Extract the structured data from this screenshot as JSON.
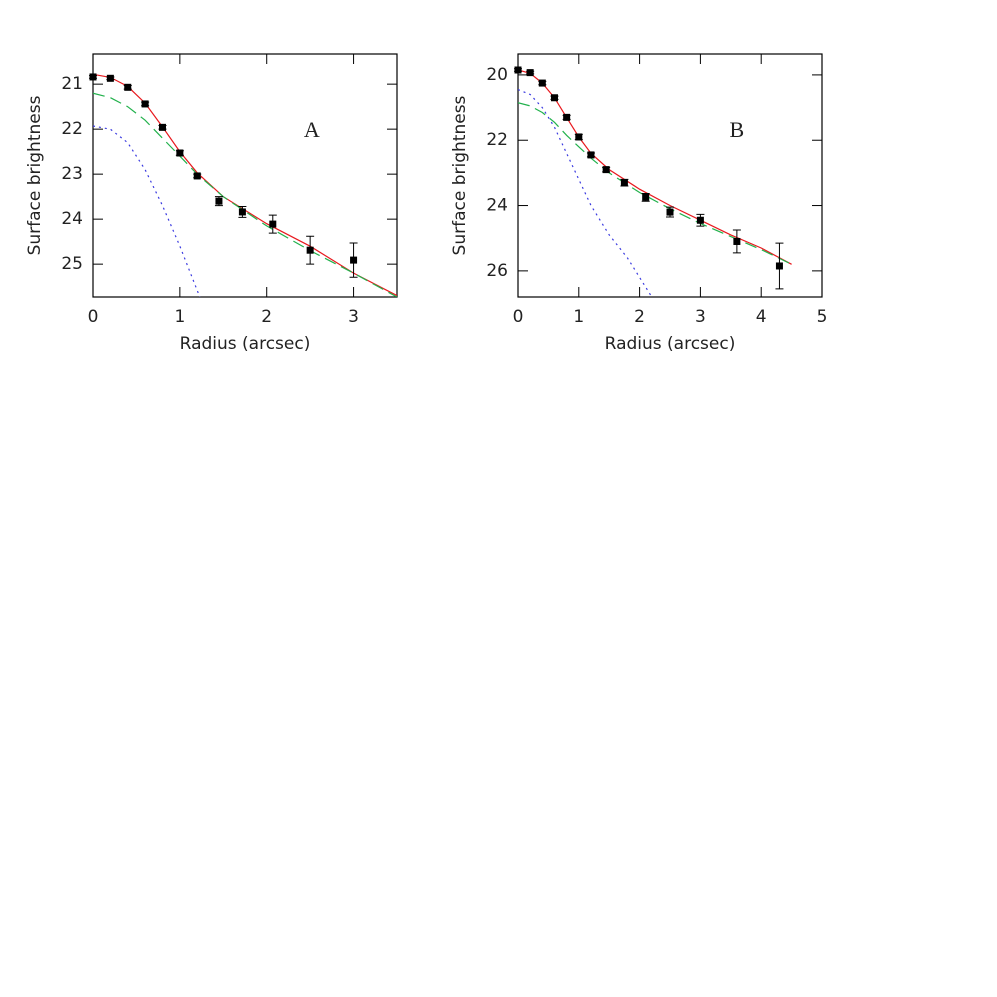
{
  "chart_data": [
    {
      "type": "scatter",
      "annotation": "A",
      "xlabel": "Radius (arcsec)",
      "ylabel": "Surface brightness",
      "xlim": [
        0,
        3.5
      ],
      "ylim": [
        25.73,
        20.33
      ],
      "xticks": [
        0,
        1,
        2,
        3
      ],
      "yticks": [
        21,
        22,
        23,
        24,
        25
      ],
      "points": {
        "color": "#000000",
        "x": [
          0,
          0.2,
          0.4,
          0.6,
          0.8,
          1.0,
          1.2,
          1.45,
          1.72,
          2.07,
          2.5,
          3.0
        ],
        "values": [
          20.84,
          20.87,
          21.07,
          21.44,
          21.96,
          22.53,
          23.04,
          23.6,
          23.84,
          24.11,
          24.69,
          24.91
        ],
        "errors": [
          0.03,
          0.03,
          0.04,
          0.04,
          0.04,
          0.05,
          0.04,
          0.1,
          0.12,
          0.2,
          0.31,
          0.38
        ]
      },
      "series": [
        {
          "color": "#e8191e",
          "style": "solid",
          "x": [
            0,
            0.2,
            0.4,
            0.6,
            0.8,
            1.0,
            1.2,
            1.5,
            2.0,
            2.5,
            3.0,
            3.5
          ],
          "values": [
            20.78,
            20.85,
            21.05,
            21.42,
            21.95,
            22.5,
            22.97,
            23.5,
            24.1,
            24.6,
            25.2,
            25.7
          ]
        },
        {
          "color": "#22b14c",
          "style": "dashed",
          "x": [
            0,
            0.2,
            0.4,
            0.6,
            0.8,
            1.0,
            1.2,
            1.5,
            2.0,
            2.5,
            3.0,
            3.5
          ],
          "values": [
            21.2,
            21.3,
            21.5,
            21.8,
            22.2,
            22.6,
            23.0,
            23.5,
            24.15,
            24.7,
            25.2,
            25.73
          ]
        },
        {
          "color": "#3a3ae0",
          "style": "dotted",
          "x": [
            0,
            0.2,
            0.4,
            0.6,
            0.8,
            1.0,
            1.23
          ],
          "values": [
            21.93,
            22.0,
            22.3,
            22.9,
            23.7,
            24.6,
            25.73
          ]
        }
      ]
    },
    {
      "type": "scatter",
      "annotation": "B",
      "xlabel": "Radius (arcsec)",
      "ylabel": "Surface brightness",
      "xlim": [
        0,
        5
      ],
      "ylim": [
        26.8,
        19.36
      ],
      "xticks": [
        0,
        1,
        2,
        3,
        4,
        5
      ],
      "yticks": [
        20,
        22,
        24,
        26
      ],
      "points": {
        "color": "#000000",
        "x": [
          0,
          0.2,
          0.4,
          0.6,
          0.8,
          1.0,
          1.2,
          1.45,
          1.75,
          2.1,
          2.5,
          3.0,
          3.6,
          4.3
        ],
        "values": [
          19.85,
          19.93,
          20.25,
          20.7,
          21.3,
          21.9,
          22.45,
          22.9,
          23.3,
          23.75,
          24.2,
          24.45,
          25.1,
          25.85
        ],
        "errors": [
          0.04,
          0.04,
          0.05,
          0.05,
          0.06,
          0.08,
          0.06,
          0.07,
          0.1,
          0.12,
          0.15,
          0.18,
          0.35,
          0.7
        ]
      },
      "series": [
        {
          "color": "#e8191e",
          "style": "solid",
          "x": [
            0,
            0.2,
            0.4,
            0.6,
            0.8,
            1.0,
            1.2,
            1.5,
            2.0,
            2.5,
            3.0,
            3.5,
            4.0,
            4.5
          ],
          "values": [
            19.85,
            19.95,
            20.25,
            20.7,
            21.3,
            21.9,
            22.4,
            22.9,
            23.5,
            24.0,
            24.45,
            24.9,
            25.3,
            25.8
          ]
        },
        {
          "color": "#22b14c",
          "style": "dashed",
          "x": [
            0,
            0.2,
            0.4,
            0.6,
            0.8,
            1.0,
            1.2,
            1.5,
            2.0,
            2.5,
            3.0,
            3.5,
            4.0,
            4.5
          ],
          "values": [
            20.85,
            20.95,
            21.15,
            21.45,
            21.85,
            22.2,
            22.55,
            23.0,
            23.6,
            24.1,
            24.55,
            24.95,
            25.35,
            25.8
          ]
        },
        {
          "color": "#3a3ae0",
          "style": "dotted",
          "x": [
            0,
            0.2,
            0.4,
            0.6,
            0.8,
            1.0,
            1.2,
            1.5,
            1.8,
            2.2
          ],
          "values": [
            20.45,
            20.6,
            21.0,
            21.6,
            22.4,
            23.2,
            24.0,
            24.9,
            25.6,
            26.8
          ]
        }
      ]
    }
  ]
}
